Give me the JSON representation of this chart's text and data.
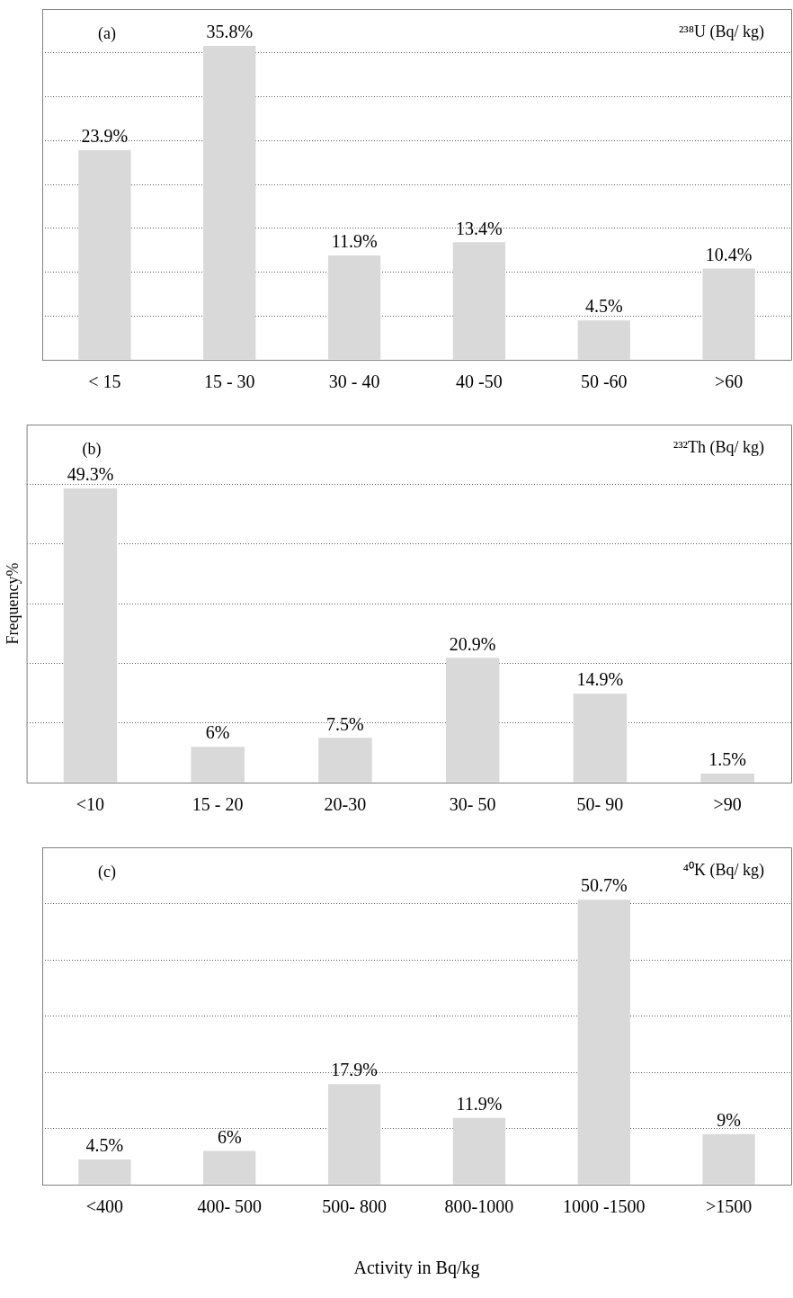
{
  "chart_data": [
    {
      "type": "bar",
      "categories": [
        "< 15",
        "15 - 30",
        "30 - 40",
        "40 -50",
        "50 -60",
        ">60"
      ],
      "values": [
        23.9,
        35.8,
        11.9,
        13.4,
        4.5,
        10.4
      ],
      "value_labels": [
        "23.9%",
        "35.8%",
        "11.9%",
        "13.4%",
        "4.5%",
        "10.4%"
      ],
      "color": "#d9d9d9",
      "grid": "y",
      "tick_labels": "x",
      "annotations": [
        "(a)",
        "²³⁸U (Bq/ kg)"
      ]
    },
    {
      "type": "bar",
      "ylabel": "Frequency%",
      "categories": [
        "<10",
        "15 - 20",
        "20-30",
        "30- 50",
        "50- 90",
        ">90"
      ],
      "values": [
        49.3,
        6,
        7.5,
        20.9,
        14.9,
        1.5
      ],
      "value_labels": [
        "49.3%",
        "6%",
        "7.5%",
        "20.9%",
        "14.9%",
        "1.5%"
      ],
      "color": "#d9d9d9",
      "grid": "y",
      "tick_labels": "x",
      "annotations": [
        "(b)",
        "²³²Th (Bq/ kg)"
      ]
    },
    {
      "type": "bar",
      "xlabel": "Activity in Bq/kg",
      "categories": [
        "<400",
        "400- 500",
        "500- 800",
        "800-1000",
        "1000 -1500",
        ">1500"
      ],
      "values": [
        4.5,
        6,
        17.9,
        11.9,
        50.7,
        9
      ],
      "value_labels": [
        "4.5%",
        "6%",
        "17.9%",
        "11.9%",
        "50.7%",
        "9%"
      ],
      "color": "#d9d9d9",
      "grid": "y",
      "tick_labels": "x",
      "annotations": [
        "(c)",
        "⁴⁰K (Bq/ kg)"
      ]
    }
  ]
}
